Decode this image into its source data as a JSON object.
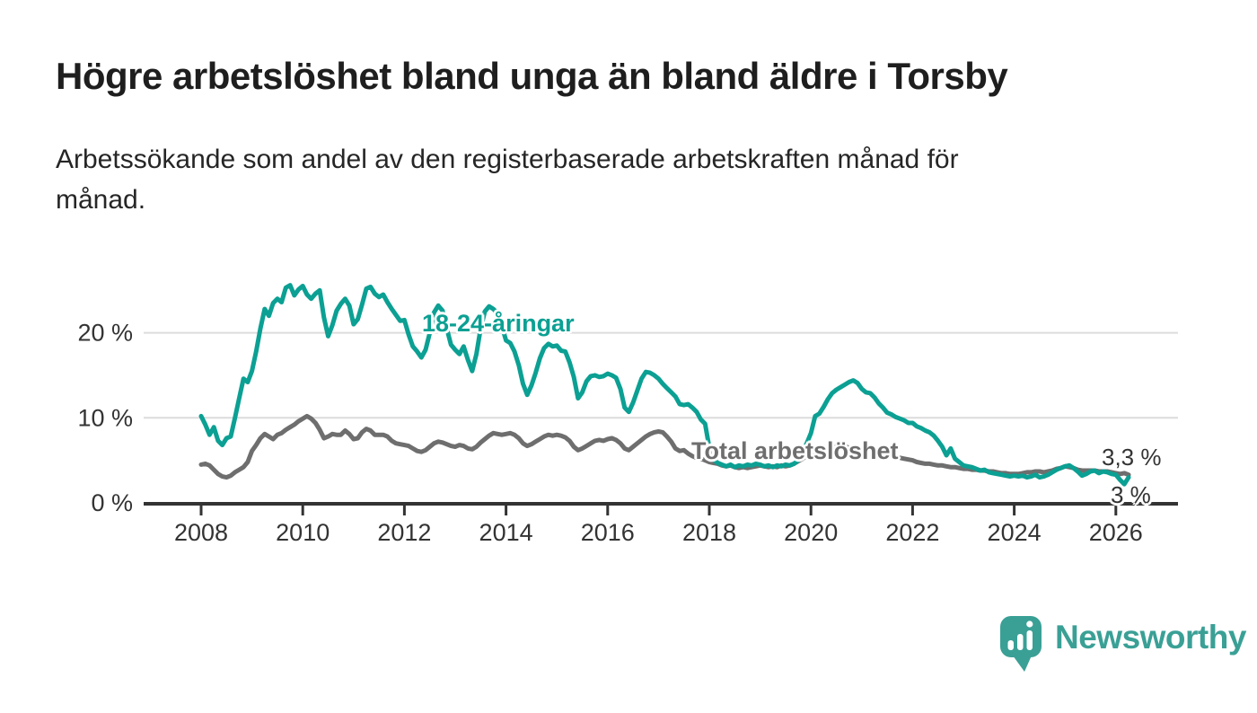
{
  "header": {
    "title": "Högre arbetslöshet bland unga än bland äldre i Torsby",
    "subtitle_lines": [
      "Arbetssökande som andel av den registerbaserade arbetskraften månad för",
      "månad."
    ]
  },
  "branding": {
    "name": "Newsworthy",
    "icon": "bar-chart-pin-icon",
    "color": "#3aa096"
  },
  "chart_data": {
    "type": "line",
    "title": "Högre arbetslöshet bland unga än bland äldre i Torsby",
    "subtitle": "Arbetssökande som andel av den registerbaserade arbetskraften månad för månad.",
    "unit": "%",
    "grid": "horizontal",
    "legend": "inline-labels",
    "x_axis": {
      "ticks": [
        2008,
        2010,
        2012,
        2014,
        2016,
        2018,
        2020,
        2022,
        2024,
        2026
      ]
    },
    "y_axis": {
      "range": [
        0,
        27
      ],
      "ticks": [
        {
          "value": 0,
          "label": "0 %"
        },
        {
          "value": 10,
          "label": "10 %"
        },
        {
          "value": 20,
          "label": "20 %"
        }
      ]
    },
    "colors": {
      "young": "#0ba093",
      "total": "#6e6e6e",
      "gridline": "#dcdcdc",
      "axis": "#333333"
    },
    "series": [
      {
        "name": "18-24",
        "label": "18-24-åringar",
        "color": "#0ba093",
        "start": 2008,
        "interval": "monthly",
        "end_label": "3 %",
        "end_value": 3.0,
        "values": [
          10.2,
          9.2,
          8.0,
          8.9,
          7.3,
          6.8,
          7.6,
          7.8,
          10.0,
          12.3,
          14.6,
          14.2,
          15.5,
          17.8,
          20.5,
          22.8,
          22.0,
          23.5,
          24.0,
          23.6,
          25.3,
          25.6,
          24.4,
          25.1,
          25.5,
          24.5,
          24.0,
          24.6,
          25.0,
          21.8,
          19.6,
          20.9,
          22.6,
          23.4,
          24.0,
          23.2,
          21.0,
          21.6,
          23.3,
          25.2,
          25.4,
          24.6,
          24.2,
          24.5,
          23.6,
          22.8,
          22.1,
          21.4,
          21.5,
          19.8,
          18.4,
          17.8,
          17.1,
          18.0,
          20.0,
          22.4,
          23.2,
          22.6,
          20.5,
          18.6,
          18.0,
          17.5,
          18.4,
          16.8,
          15.5,
          17.5,
          20.5,
          22.5,
          23.1,
          22.8,
          22.3,
          20.8,
          19.1,
          18.8,
          17.8,
          16.2,
          14.0,
          12.7,
          13.8,
          15.3,
          17.0,
          18.2,
          18.7,
          18.4,
          18.5,
          17.9,
          17.8,
          16.5,
          14.8,
          12.3,
          13.0,
          14.3,
          14.9,
          15.0,
          14.8,
          14.9,
          15.2,
          15.0,
          14.7,
          13.4,
          11.2,
          10.7,
          11.8,
          13.2,
          14.6,
          15.4,
          15.3,
          15.0,
          14.6,
          14.0,
          13.5,
          13.0,
          12.5,
          11.6,
          11.5,
          11.6,
          11.2,
          10.7,
          9.8,
          9.3,
          6.5,
          5.1,
          4.7,
          4.5,
          4.3,
          4.5,
          4.2,
          4.4,
          4.3,
          4.5,
          4.4,
          4.6,
          4.5,
          4.3,
          4.4,
          4.2,
          4.4,
          4.3,
          4.5,
          4.4,
          4.6,
          5.0,
          5.9,
          7.0,
          8.2,
          10.2,
          10.5,
          11.3,
          12.2,
          12.9,
          13.3,
          13.6,
          13.9,
          14.2,
          14.4,
          14.1,
          13.4,
          13.0,
          12.9,
          12.4,
          11.7,
          11.2,
          10.6,
          10.4,
          10.1,
          9.9,
          9.7,
          9.4,
          9.4,
          9.0,
          8.8,
          8.5,
          8.3,
          7.9,
          7.3,
          6.6,
          5.6,
          6.4,
          5.2,
          4.8,
          4.4,
          4.3,
          4.2,
          4.0,
          3.8,
          3.9,
          3.6,
          3.5,
          3.4,
          3.3,
          3.2,
          3.1,
          3.2,
          3.1,
          3.2,
          3.0,
          3.1,
          3.3,
          3.0,
          3.1,
          3.3,
          3.6,
          3.9,
          4.1,
          4.3,
          4.4,
          4.1,
          3.7,
          3.2,
          3.4,
          3.7,
          3.8,
          3.5,
          3.7,
          3.6,
          3.4,
          3.3,
          2.7,
          2.2,
          3.0
        ]
      },
      {
        "name": "total",
        "label": "Total arbetslöshet",
        "color": "#6e6e6e",
        "start": 2008,
        "interval": "monthly",
        "end_label": "3,3 %",
        "end_value": 3.3,
        "values": [
          4.5,
          4.6,
          4.4,
          3.9,
          3.4,
          3.1,
          3.0,
          3.2,
          3.6,
          3.9,
          4.2,
          4.8,
          6.1,
          6.8,
          7.6,
          8.1,
          7.8,
          7.5,
          8.0,
          8.2,
          8.6,
          8.9,
          9.2,
          9.6,
          9.9,
          10.2,
          9.9,
          9.4,
          8.6,
          7.6,
          7.8,
          8.1,
          8.0,
          8.0,
          8.5,
          8.1,
          7.5,
          7.6,
          8.3,
          8.7,
          8.5,
          8.0,
          8.0,
          8.0,
          7.8,
          7.3,
          7.0,
          6.9,
          6.8,
          6.7,
          6.4,
          6.1,
          6.0,
          6.2,
          6.6,
          7.0,
          7.2,
          7.1,
          6.9,
          6.7,
          6.6,
          6.8,
          6.7,
          6.4,
          6.3,
          6.6,
          7.1,
          7.5,
          7.9,
          8.2,
          8.1,
          8.0,
          8.1,
          8.2,
          8.0,
          7.6,
          7.0,
          6.7,
          6.9,
          7.2,
          7.5,
          7.8,
          8.0,
          7.9,
          8.0,
          7.9,
          7.7,
          7.3,
          6.6,
          6.2,
          6.4,
          6.7,
          7.0,
          7.3,
          7.4,
          7.3,
          7.5,
          7.6,
          7.4,
          7.0,
          6.4,
          6.2,
          6.6,
          7.0,
          7.4,
          7.8,
          8.1,
          8.3,
          8.4,
          8.3,
          7.8,
          7.2,
          6.4,
          6.1,
          6.2,
          5.8,
          5.5,
          5.3,
          5.2,
          5.0,
          4.8,
          4.7,
          4.6,
          4.4,
          4.3,
          4.4,
          4.2,
          4.1,
          4.2,
          4.1,
          4.2,
          4.3,
          4.4,
          4.3,
          4.2,
          4.3,
          4.2,
          4.4,
          4.3,
          4.4,
          4.6,
          4.9,
          5.2,
          5.5,
          5.8,
          6.0,
          6.2,
          6.3,
          6.4,
          6.6,
          6.8,
          6.7,
          6.6,
          6.5,
          6.4,
          6.3,
          6.2,
          6.1,
          6.1,
          6.0,
          5.9,
          5.8,
          5.6,
          5.5,
          5.4,
          5.3,
          5.2,
          5.1,
          5.0,
          4.8,
          4.7,
          4.6,
          4.6,
          4.5,
          4.4,
          4.4,
          4.3,
          4.2,
          4.2,
          4.1,
          4.0,
          4.0,
          3.9,
          3.9,
          3.8,
          3.8,
          3.7,
          3.7,
          3.6,
          3.5,
          3.5,
          3.4,
          3.4,
          3.4,
          3.5,
          3.6,
          3.6,
          3.7,
          3.7,
          3.6,
          3.7,
          3.8,
          4.0,
          4.1,
          4.3,
          4.2,
          4.1,
          3.9,
          3.8,
          3.8,
          3.8,
          3.8,
          3.7,
          3.7,
          3.7,
          3.6,
          3.5,
          3.4,
          3.5,
          3.3
        ]
      }
    ]
  }
}
